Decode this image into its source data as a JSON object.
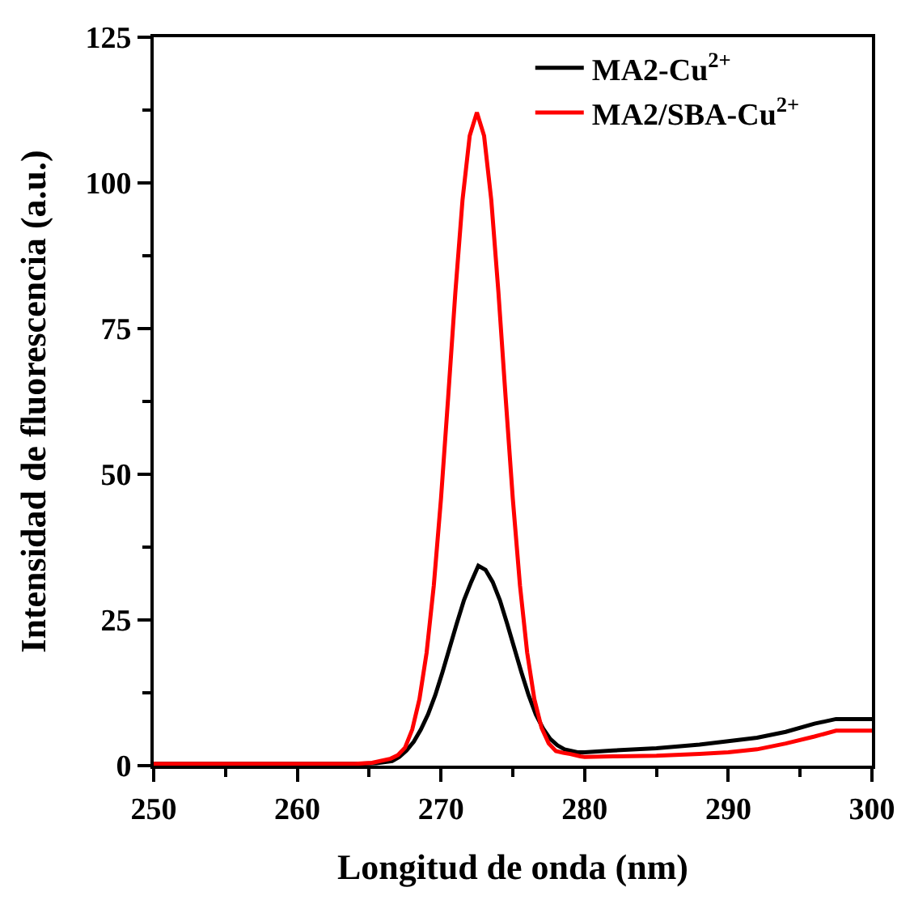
{
  "chart_data": {
    "type": "line",
    "xlabel": "Longitud de onda (nm)",
    "ylabel": "Intensidad de fluorescencia (a.u.)",
    "xlim": [
      250,
      300
    ],
    "ylim": [
      0,
      125
    ],
    "xticks": [
      250,
      {
        "value": 255,
        "label": null
      },
      260,
      {
        "value": 265,
        "label": null
      },
      270,
      {
        "value": 275,
        "label": null
      },
      280,
      {
        "value": 285,
        "label": null
      },
      290,
      {
        "value": 295,
        "label": null
      },
      300
    ],
    "yticks": [
      0,
      {
        "value": 12.5,
        "label": null
      },
      25,
      {
        "value": 37.5,
        "label": null
      },
      50,
      {
        "value": 62.5,
        "label": null
      },
      75,
      {
        "value": 87.5,
        "label": null
      },
      100,
      {
        "value": 112.5,
        "label": null
      },
      125
    ],
    "grid": false,
    "legend": "top right",
    "marker": "none",
    "line_style": "solid",
    "series": [
      {
        "name": "MA2-Cu$^{2+}$",
        "color": "#000000",
        "x": [
          250,
          255,
          260,
          264,
          265.5,
          266.6,
          267.1,
          267.6,
          268.1,
          268.6,
          269.1,
          269.6,
          270.1,
          270.6,
          271.1,
          271.6,
          272.1,
          272.6,
          273.1,
          273.6,
          274.1,
          274.6,
          275.1,
          275.6,
          276.1,
          276.6,
          277.1,
          277.6,
          278.1,
          278.6,
          279.5,
          280,
          282,
          285,
          288,
          290,
          292,
          294,
          296,
          297.5,
          300
        ],
        "values": [
          0.3,
          0.3,
          0.3,
          0.3,
          0.4,
          0.8,
          1.5,
          2.6,
          4.1,
          6.2,
          8.8,
          12.1,
          16.0,
          20.2,
          24.4,
          28.4,
          31.5,
          34.3,
          33.6,
          31.5,
          28.4,
          24.4,
          20.2,
          16.0,
          12.1,
          8.8,
          6.4,
          4.6,
          3.5,
          2.8,
          2.3,
          2.3,
          2.6,
          3.0,
          3.6,
          4.2,
          4.8,
          5.8,
          7.2,
          8.0,
          8.0
        ]
      },
      {
        "name": "MA2/SBA-Cu$^{2+}$",
        "color": "#ff0000",
        "x": [
          250,
          255,
          260,
          264,
          265.2,
          266.5,
          267,
          267.5,
          268,
          268.5,
          269,
          269.5,
          270,
          270.5,
          271,
          271.5,
          272,
          272.5,
          273,
          273.5,
          274,
          274.5,
          275,
          275.5,
          276,
          276.5,
          277,
          277.5,
          278,
          278.5,
          279,
          279.7,
          280,
          282,
          285,
          288,
          290,
          292,
          294,
          296,
          297.5,
          300
        ],
        "values": [
          0.3,
          0.3,
          0.3,
          0.3,
          0.5,
          1.2,
          1.8,
          3.1,
          6.2,
          11.4,
          19.4,
          30.9,
          45.8,
          63.2,
          81.2,
          97.1,
          108.1,
          112.1,
          108.1,
          97.1,
          81.2,
          63.2,
          45.8,
          30.9,
          19.4,
          11.4,
          6.5,
          3.8,
          2.5,
          2.2,
          2.0,
          1.6,
          1.5,
          1.6,
          1.7,
          2.0,
          2.3,
          2.8,
          3.8,
          5.0,
          6.0,
          6.0
        ]
      }
    ]
  }
}
